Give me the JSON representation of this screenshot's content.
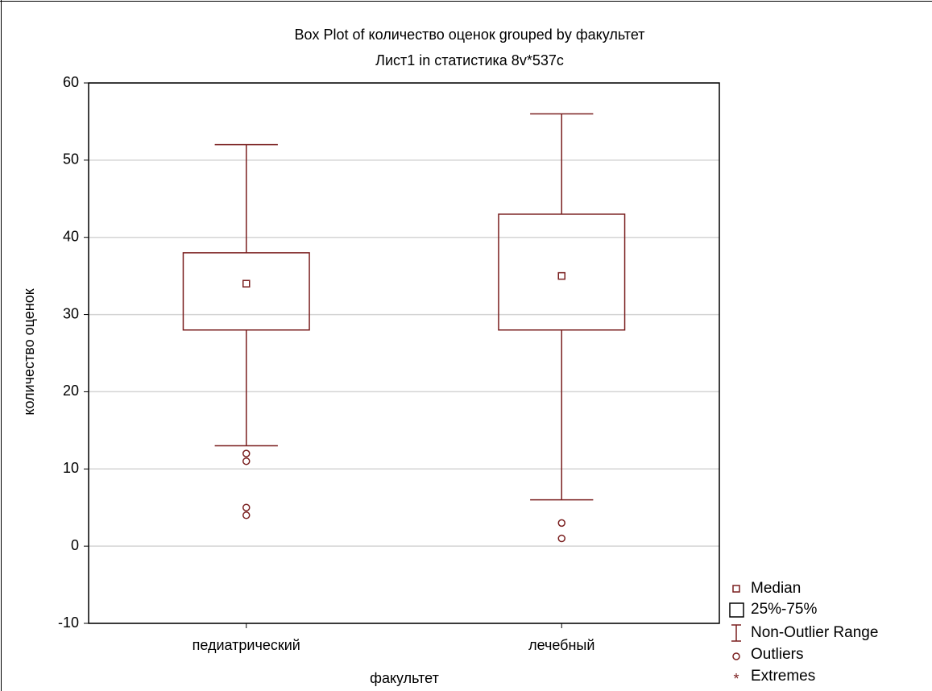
{
  "chart_data": {
    "type": "box",
    "title": "Box Plot of количество оценок grouped by  факультет",
    "subtitle": "Лист1 in статистика 8v*537c",
    "x_label": "факультет",
    "y_label": "количество оценок",
    "categories": [
      "педиатрический",
      "лечебный"
    ],
    "boxes": [
      {
        "whisker_low": 13,
        "q1": 28,
        "median": 34,
        "q3": 38,
        "whisker_high": 52,
        "outliers": [
          12,
          11,
          5,
          4
        ]
      },
      {
        "whisker_low": 6,
        "q1": 28,
        "median": 35,
        "q3": 43,
        "whisker_high": 56,
        "outliers": [
          3,
          1
        ]
      }
    ],
    "color": "#7a1f1f",
    "ylim": [
      -10,
      60
    ],
    "yticks": [
      -10,
      0,
      10,
      20,
      30,
      40,
      50,
      60
    ],
    "grid": true,
    "legend": [
      "Median",
      "25%-75%",
      "Non-Outlier Range",
      "Outliers",
      "Extremes"
    ]
  }
}
